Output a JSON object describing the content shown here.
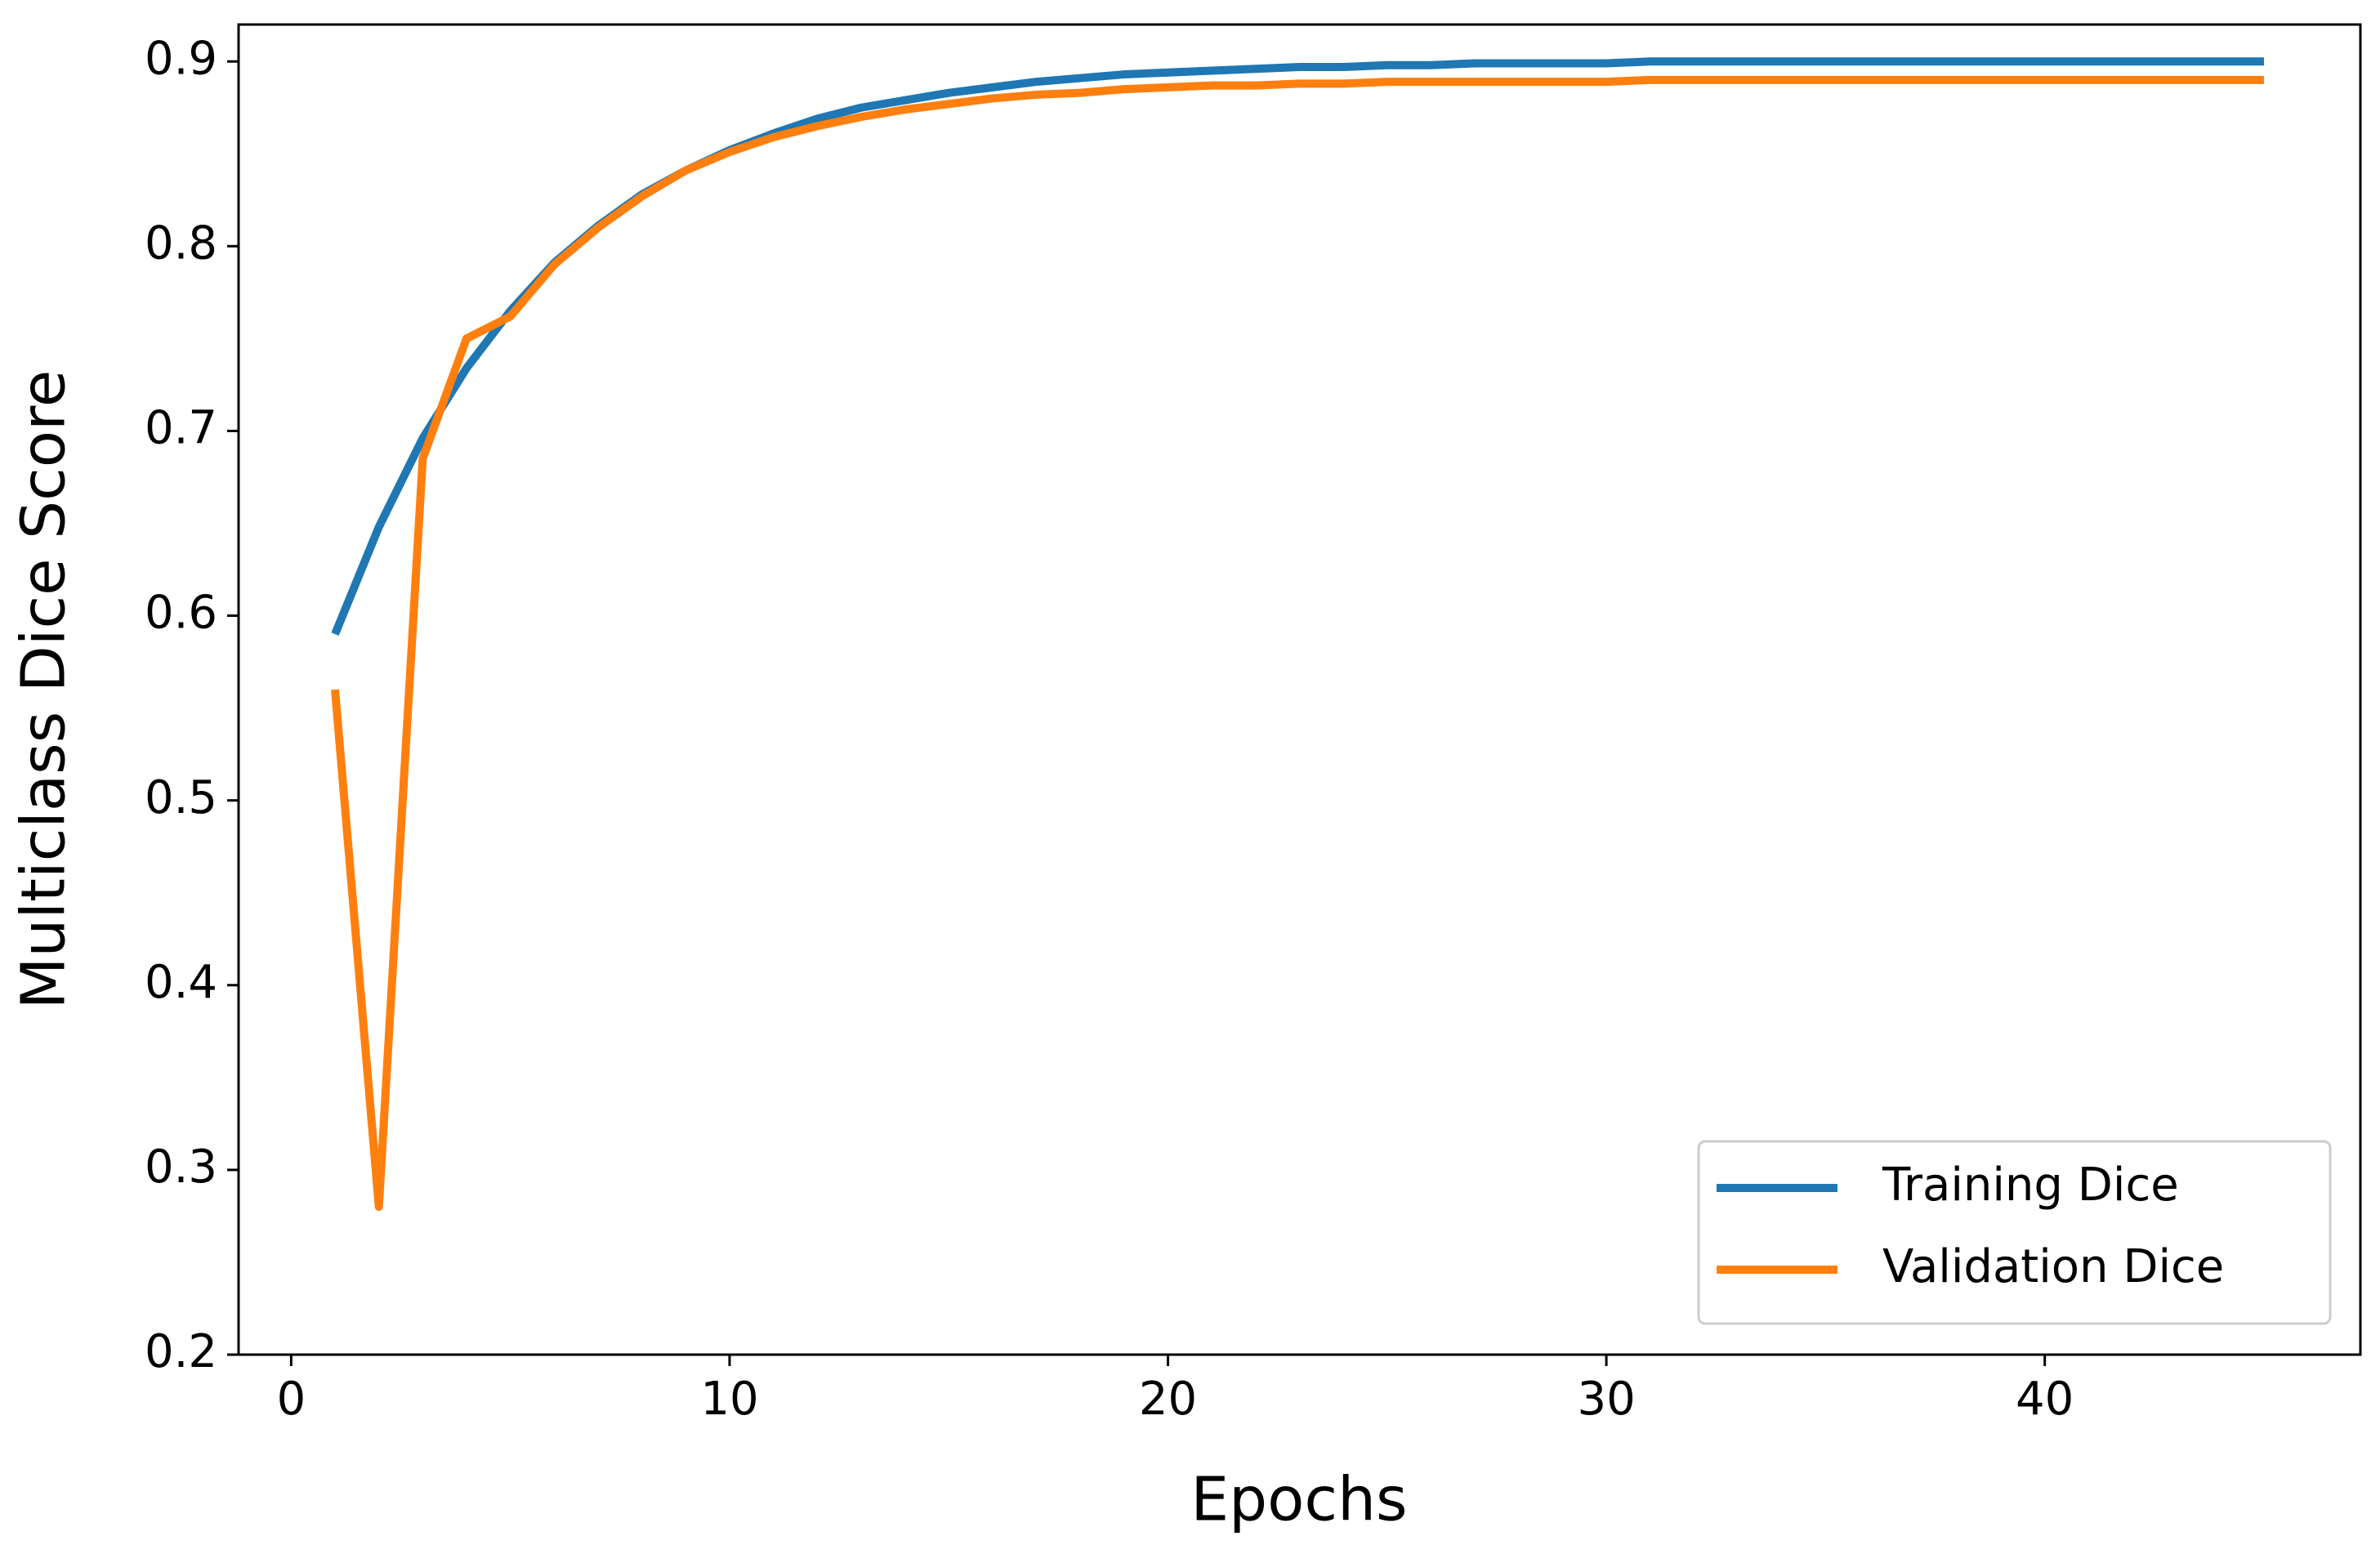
{
  "chart_data": {
    "type": "line",
    "xlabel": "Epochs",
    "ylabel": "Multiclass Dice Score",
    "x": [
      1,
      2,
      3,
      4,
      5,
      6,
      7,
      8,
      9,
      10,
      11,
      12,
      13,
      14,
      15,
      16,
      17,
      18,
      19,
      20,
      21,
      22,
      23,
      24,
      25,
      26,
      27,
      28,
      29,
      30,
      31,
      32,
      33,
      34,
      35,
      36,
      37,
      38,
      39,
      40,
      41,
      42,
      43,
      44,
      45
    ],
    "series": [
      {
        "name": "Training Dice",
        "color": "#1f77b4",
        "values": [
          0.59,
          0.648,
          0.696,
          0.734,
          0.765,
          0.791,
          0.811,
          0.828,
          0.841,
          0.852,
          0.861,
          0.869,
          0.875,
          0.879,
          0.883,
          0.886,
          0.889,
          0.891,
          0.893,
          0.894,
          0.895,
          0.896,
          0.897,
          0.897,
          0.898,
          0.898,
          0.899,
          0.899,
          0.899,
          0.899,
          0.9,
          0.9,
          0.9,
          0.9,
          0.9,
          0.9,
          0.9,
          0.9,
          0.9,
          0.9,
          0.9,
          0.9,
          0.9,
          0.9,
          0.9
        ]
      },
      {
        "name": "Validation Dice",
        "color": "#ff7f0e",
        "values": [
          0.56,
          0.28,
          0.685,
          0.75,
          0.762,
          0.79,
          0.81,
          0.827,
          0.841,
          0.851,
          0.859,
          0.865,
          0.87,
          0.874,
          0.877,
          0.88,
          0.882,
          0.883,
          0.885,
          0.886,
          0.887,
          0.887,
          0.888,
          0.888,
          0.889,
          0.889,
          0.889,
          0.889,
          0.889,
          0.889,
          0.89,
          0.89,
          0.89,
          0.89,
          0.89,
          0.89,
          0.89,
          0.89,
          0.89,
          0.89,
          0.89,
          0.89,
          0.89,
          0.89,
          0.89
        ]
      }
    ],
    "xlim": [
      -1.2,
      47.2
    ],
    "xticks": [
      0,
      10,
      20,
      30,
      40
    ],
    "ylim": [
      0.2,
      0.92
    ],
    "yticks": [
      0.2,
      0.3,
      0.4,
      0.5,
      0.6,
      0.7,
      0.8,
      0.9
    ],
    "grid": false,
    "legend": "lower right"
  }
}
